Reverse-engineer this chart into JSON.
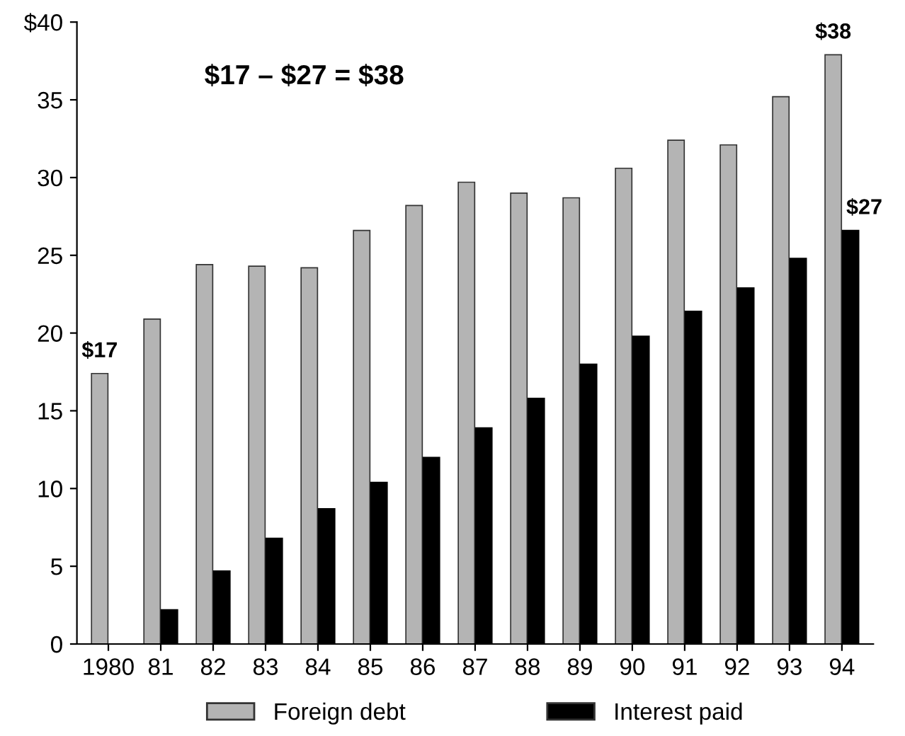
{
  "chart_data": {
    "type": "bar",
    "categories": [
      "1980",
      "81",
      "82",
      "83",
      "84",
      "85",
      "86",
      "87",
      "88",
      "89",
      "90",
      "91",
      "92",
      "93",
      "94"
    ],
    "series": [
      {
        "name": "Foreign debt",
        "color": "#b4b4b4",
        "values": [
          17.4,
          20.9,
          24.4,
          24.3,
          24.2,
          26.6,
          28.2,
          29.7,
          29.0,
          28.7,
          30.6,
          32.4,
          32.1,
          35.2,
          37.9
        ]
      },
      {
        "name": "Interest paid",
        "color": "#000000",
        "values": [
          null,
          2.2,
          4.7,
          6.8,
          8.7,
          10.4,
          12.0,
          13.9,
          15.8,
          18.0,
          19.8,
          21.4,
          22.9,
          24.8,
          26.6
        ]
      }
    ],
    "ylim": [
      0,
      40
    ],
    "yticks": [
      0,
      5,
      10,
      15,
      20,
      25,
      30,
      35,
      {
        "value": 40,
        "label": "$40"
      }
    ],
    "annotations": [
      "$17 – $27 = $38",
      {
        "text": "$17",
        "x": "1980",
        "y": 17.4
      },
      {
        "text": "$38",
        "x": "94",
        "y": 37.9
      },
      {
        "text": "$27",
        "x": "94",
        "y": 26.6
      }
    ],
    "legend": "bottom",
    "grid": false
  }
}
